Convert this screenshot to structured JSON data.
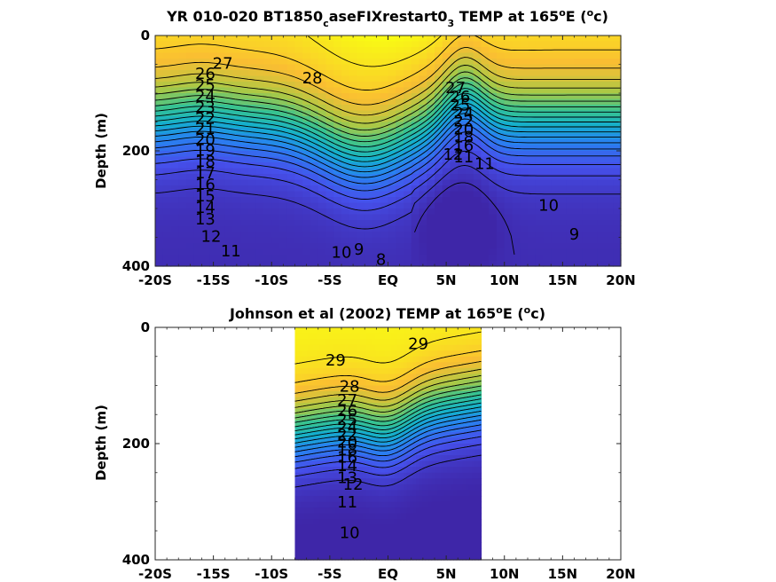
{
  "chart_data": [
    {
      "type": "heatmap",
      "title_main": "YR 010-020 BT1850",
      "title_sub": "c",
      "title_mid": "aseFIXrestart0",
      "title_sub2": "3",
      "title_tail": " TEMP at 165",
      "title_deg": "o",
      "title_e": "E (",
      "title_unit_sup": "o",
      "title_unit_c": "c)",
      "ylabel": "Depth (m)",
      "xlim": [
        -20,
        20
      ],
      "ylim": [
        0,
        400
      ],
      "xticks": [
        -20,
        -15,
        -10,
        -5,
        0,
        5,
        10,
        15,
        20
      ],
      "xtick_labels": [
        "-20S",
        "-15S",
        "-10S",
        "-5S",
        "EQ",
        "5N",
        "10N",
        "15N",
        "20N"
      ],
      "yticks": [
        0,
        200,
        400
      ],
      "ytick_labels": [
        "0",
        "200",
        "400"
      ],
      "data_extent": [
        -20,
        20
      ],
      "contour_levels": [
        8,
        9,
        10,
        11,
        12,
        13,
        14,
        15,
        16,
        17,
        18,
        19,
        20,
        21,
        22,
        23,
        24,
        25,
        26,
        27,
        28
      ],
      "contour_labels": [
        {
          "x": -14.2,
          "y": 50,
          "text": "27"
        },
        {
          "x": -6.5,
          "y": 75,
          "text": "28"
        },
        {
          "x": -15.7,
          "y": 68,
          "text": "26"
        },
        {
          "x": -15.7,
          "y": 88,
          "text": "25"
        },
        {
          "x": -15.7,
          "y": 107,
          "text": "24"
        },
        {
          "x": -15.7,
          "y": 126,
          "text": "23"
        },
        {
          "x": -15.7,
          "y": 145,
          "text": "22"
        },
        {
          "x": -15.7,
          "y": 163,
          "text": "21"
        },
        {
          "x": -15.7,
          "y": 182,
          "text": "20"
        },
        {
          "x": -15.7,
          "y": 201,
          "text": "19"
        },
        {
          "x": -15.7,
          "y": 220,
          "text": "18"
        },
        {
          "x": -15.7,
          "y": 240,
          "text": "17"
        },
        {
          "x": -15.7,
          "y": 260,
          "text": "16"
        },
        {
          "x": -15.7,
          "y": 280,
          "text": "15"
        },
        {
          "x": -15.7,
          "y": 300,
          "text": "14"
        },
        {
          "x": -15.7,
          "y": 320,
          "text": "13"
        },
        {
          "x": -15.2,
          "y": 350,
          "text": "12"
        },
        {
          "x": -13.5,
          "y": 375,
          "text": "11"
        },
        {
          "x": -4.0,
          "y": 378,
          "text": "10"
        },
        {
          "x": -2.5,
          "y": 372,
          "text": "9"
        },
        {
          "x": -0.6,
          "y": 390,
          "text": "8"
        },
        {
          "x": 5.8,
          "y": 92,
          "text": "27"
        },
        {
          "x": 6.2,
          "y": 108,
          "text": "26"
        },
        {
          "x": 6.2,
          "y": 122,
          "text": "25"
        },
        {
          "x": 6.5,
          "y": 136,
          "text": "24"
        },
        {
          "x": 6.5,
          "y": 150,
          "text": "22"
        },
        {
          "x": 6.5,
          "y": 164,
          "text": "20"
        },
        {
          "x": 6.5,
          "y": 178,
          "text": "18"
        },
        {
          "x": 6.5,
          "y": 192,
          "text": "16"
        },
        {
          "x": 5.6,
          "y": 208,
          "text": "12"
        },
        {
          "x": 6.5,
          "y": 212,
          "text": "11"
        },
        {
          "x": 8.3,
          "y": 224,
          "text": "11"
        },
        {
          "x": 13.8,
          "y": 296,
          "text": "10"
        },
        {
          "x": 16.0,
          "y": 346,
          "text": "9"
        }
      ]
    },
    {
      "type": "heatmap",
      "title_main": "Johnson et al (2002) TEMP at 165",
      "title_deg": "o",
      "title_e": "E (",
      "title_unit_sup": "o",
      "title_unit_c": "c)",
      "ylabel": "Depth (m)",
      "xlim": [
        -20,
        20
      ],
      "ylim": [
        0,
        400
      ],
      "xticks": [
        -20,
        -15,
        -10,
        -5,
        0,
        5,
        10,
        15,
        20
      ],
      "xtick_labels": [
        "-20S",
        "-15S",
        "-10S",
        "-5S",
        "EQ",
        "5N",
        "10N",
        "15N",
        "20N"
      ],
      "yticks": [
        0,
        200,
        400
      ],
      "ytick_labels": [
        "0",
        "200",
        "400"
      ],
      "data_extent": [
        -8,
        8
      ],
      "contour_levels": [
        10,
        11,
        12,
        13,
        14,
        15,
        16,
        17,
        18,
        19,
        20,
        21,
        22,
        23,
        24,
        25,
        26,
        27,
        28,
        29
      ],
      "contour_labels": [
        {
          "x": -4.5,
          "y": 58,
          "text": "29"
        },
        {
          "x": 2.6,
          "y": 30,
          "text": "29"
        },
        {
          "x": -3.3,
          "y": 103,
          "text": "28"
        },
        {
          "x": -3.5,
          "y": 127,
          "text": "27"
        },
        {
          "x": -3.5,
          "y": 145,
          "text": "26"
        },
        {
          "x": -3.5,
          "y": 160,
          "text": "25"
        },
        {
          "x": -3.5,
          "y": 173,
          "text": "24"
        },
        {
          "x": -3.5,
          "y": 186,
          "text": "22"
        },
        {
          "x": -3.5,
          "y": 199,
          "text": "20"
        },
        {
          "x": -3.5,
          "y": 212,
          "text": "18"
        },
        {
          "x": -3.5,
          "y": 225,
          "text": "16"
        },
        {
          "x": -3.5,
          "y": 240,
          "text": "14"
        },
        {
          "x": -3.5,
          "y": 260,
          "text": "13"
        },
        {
          "x": -3.0,
          "y": 272,
          "text": "12"
        },
        {
          "x": -3.5,
          "y": 302,
          "text": "11"
        },
        {
          "x": -3.3,
          "y": 355,
          "text": "10"
        }
      ]
    }
  ]
}
